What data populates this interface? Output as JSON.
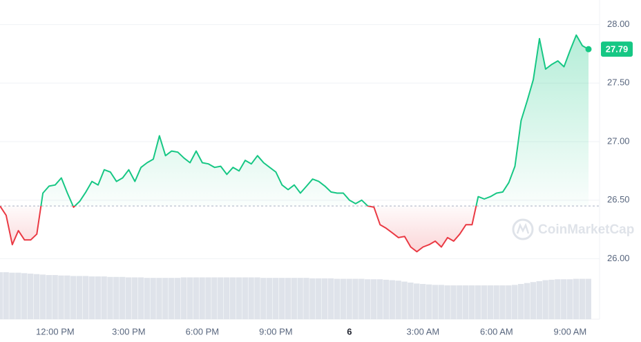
{
  "chart_data": {
    "type": "line",
    "categories": [
      null,
      null,
      null,
      null,
      null,
      null,
      null,
      null,
      null,
      "12:00 PM",
      null,
      null,
      null,
      null,
      null,
      null,
      null,
      null,
      null,
      null,
      null,
      "3:00 PM",
      null,
      null,
      null,
      null,
      null,
      null,
      null,
      null,
      null,
      null,
      null,
      "6:00 PM",
      null,
      null,
      null,
      null,
      null,
      null,
      null,
      null,
      null,
      null,
      null,
      "9:00 PM",
      null,
      null,
      null,
      null,
      null,
      null,
      null,
      null,
      null,
      null,
      null,
      "6",
      null,
      null,
      null,
      null,
      null,
      null,
      null,
      null,
      null,
      null,
      null,
      "3:00 AM",
      null,
      null,
      null,
      null,
      null,
      null,
      null,
      null,
      null,
      null,
      null,
      "6:00 AM",
      null,
      null,
      null,
      null,
      null,
      null,
      null,
      null,
      null,
      null,
      null,
      "9:00 AM",
      null,
      null,
      null
    ],
    "values": [
      26.45,
      26.37,
      26.12,
      26.24,
      26.16,
      26.16,
      26.21,
      26.56,
      26.62,
      26.63,
      26.69,
      26.56,
      26.44,
      26.49,
      26.57,
      26.66,
      26.63,
      26.76,
      26.74,
      26.66,
      26.69,
      26.76,
      26.66,
      26.78,
      26.82,
      26.85,
      27.05,
      26.88,
      26.92,
      26.91,
      26.86,
      26.82,
      26.92,
      26.82,
      26.81,
      26.78,
      26.79,
      26.72,
      26.78,
      26.75,
      26.84,
      26.81,
      26.88,
      26.82,
      26.78,
      26.74,
      26.63,
      26.59,
      26.63,
      26.56,
      26.62,
      26.68,
      26.66,
      26.62,
      26.57,
      26.56,
      26.56,
      26.5,
      26.47,
      26.5,
      26.45,
      26.44,
      26.29,
      26.26,
      26.22,
      26.18,
      26.19,
      26.1,
      26.06,
      26.1,
      26.12,
      26.15,
      26.1,
      26.18,
      26.15,
      26.21,
      26.29,
      26.29,
      26.53,
      26.51,
      26.53,
      26.56,
      26.57,
      26.65,
      26.79,
      27.18,
      27.35,
      27.53,
      27.88,
      27.62,
      27.66,
      27.69,
      27.64,
      27.78,
      27.91,
      27.82,
      27.79
    ],
    "volume": [
      100,
      100,
      99,
      99,
      98,
      97,
      96,
      95,
      94,
      94,
      93,
      93,
      92,
      92,
      92,
      91,
      91,
      91,
      90,
      90,
      90,
      89,
      89,
      89,
      88,
      88,
      88,
      88,
      88,
      88,
      89,
      89,
      89,
      89,
      89,
      89,
      89,
      89,
      89,
      89,
      89,
      89,
      89,
      88,
      88,
      88,
      88,
      88,
      88,
      88,
      88,
      87,
      87,
      87,
      87,
      86,
      86,
      86,
      86,
      86,
      85,
      85,
      85,
      84,
      83,
      82,
      80,
      78,
      76,
      75,
      74,
      73,
      73,
      72,
      72,
      72,
      72,
      72,
      72,
      72,
      72,
      72,
      72,
      72,
      73,
      75,
      77,
      79,
      81,
      83,
      84,
      85,
      85,
      85,
      86,
      86,
      86
    ],
    "baseline": 26.45,
    "current_price": 27.79,
    "up_color": "#16c784",
    "down_color": "#ea3943",
    "ylim": [
      25.79,
      28.21
    ],
    "yticks": [
      {
        "value": 26,
        "label": "26.00"
      },
      {
        "value": 26.5,
        "label": "26.50"
      },
      {
        "value": 27,
        "label": "27.00"
      },
      {
        "value": 27.5,
        "label": "27.50"
      },
      {
        "value": 28,
        "label": "28.00"
      }
    ],
    "grid": true,
    "watermark": "CoinMarketCap"
  }
}
